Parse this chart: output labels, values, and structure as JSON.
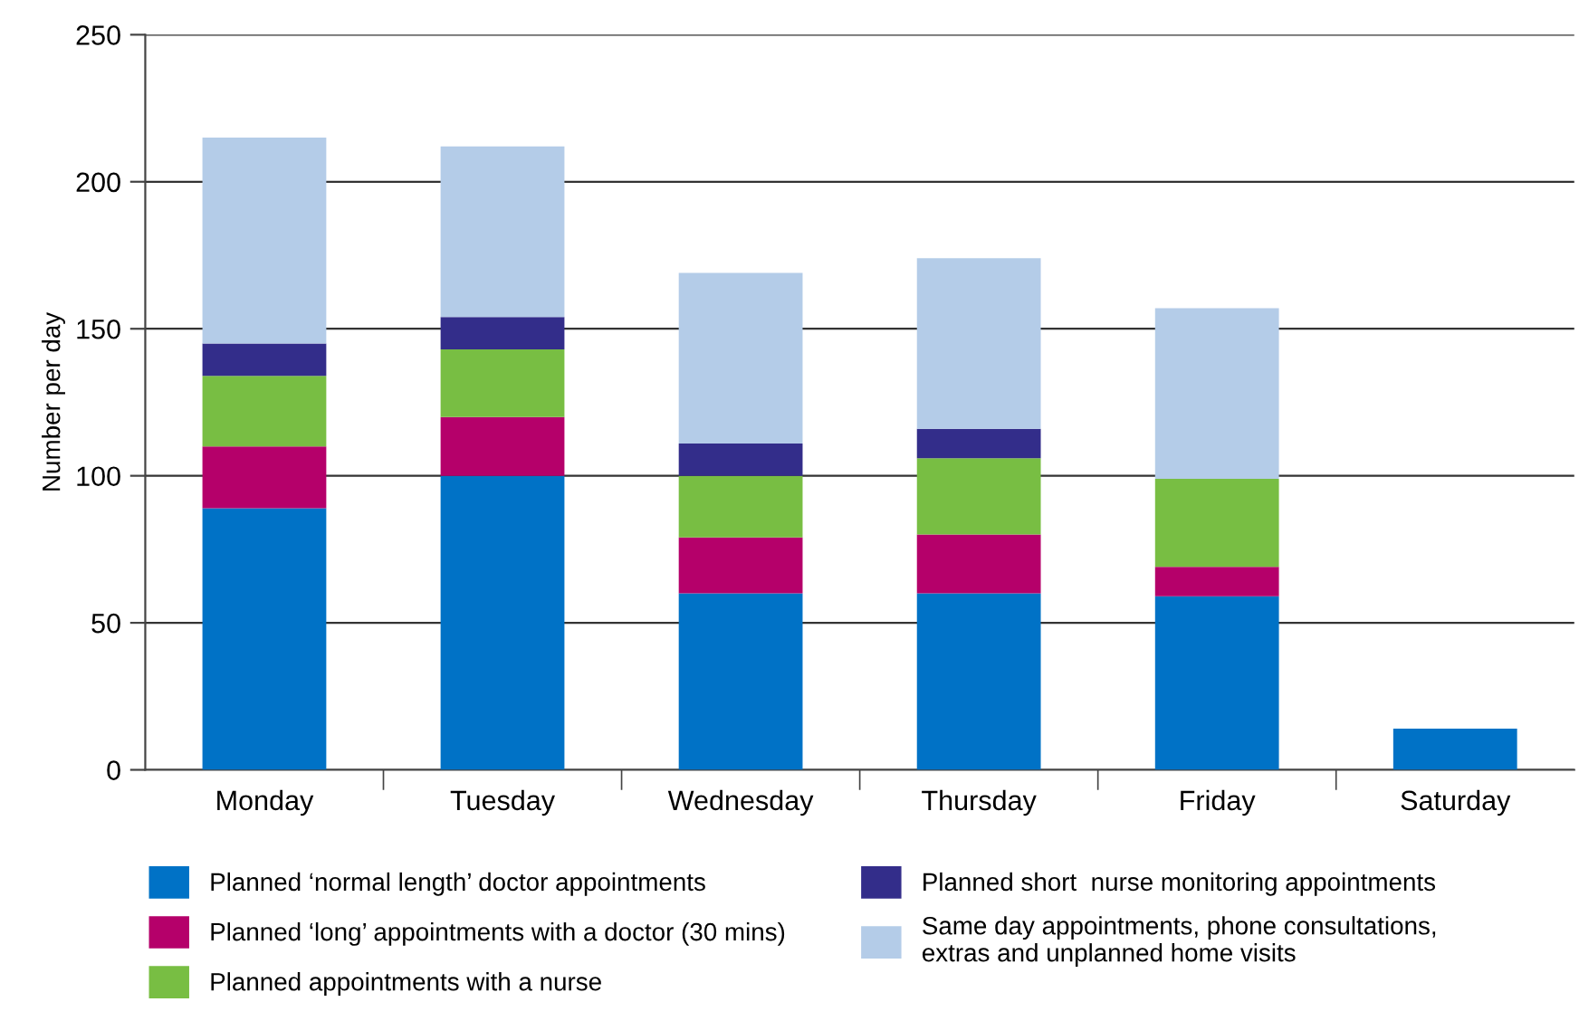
{
  "chart_data": {
    "type": "bar",
    "stacked": true,
    "ylabel": "Number per day",
    "categories": [
      "Monday",
      "Tuesday",
      "Wednesday",
      "Thursday",
      "Friday",
      "Saturday"
    ],
    "series": [
      {
        "name": "Planned ‘normal length’ doctor appointments",
        "color": "#0072c6",
        "values": [
          89,
          100,
          60,
          60,
          59,
          14
        ]
      },
      {
        "name": "Planned ‘long’ appointments with a doctor (30 mins)",
        "color": "#b5006a",
        "values": [
          21,
          20,
          19,
          20,
          10,
          null
        ]
      },
      {
        "name": "Planned appointments with a nurse",
        "color": "#78be43",
        "values": [
          24,
          23,
          21,
          26,
          30,
          null
        ]
      },
      {
        "name": "Planned short  nurse monitoring appointments",
        "color": "#332d8a",
        "values": [
          11,
          11,
          11,
          10,
          null,
          null
        ]
      },
      {
        "name": "Same day appointments, phone consultations,\nextras and unplanned home visits",
        "color": "#b4cce8",
        "values": [
          70,
          58,
          58,
          58,
          58,
          null
        ]
      }
    ],
    "ylim": [
      0,
      250
    ],
    "yticks": [
      0,
      50,
      100,
      150,
      200,
      250
    ],
    "grid": "y",
    "legend": "bottom"
  }
}
